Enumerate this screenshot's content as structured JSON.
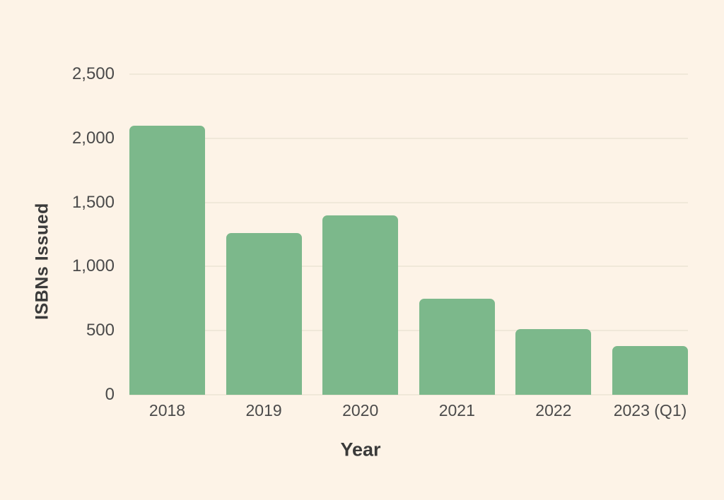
{
  "chart_data": {
    "type": "bar",
    "title": "",
    "xlabel": "Year",
    "ylabel": "ISBNs Issued",
    "categories": [
      "2018",
      "2019",
      "2020",
      "2021",
      "2022",
      "2023 (Q1)"
    ],
    "values": [
      2100,
      1260,
      1400,
      750,
      510,
      380
    ],
    "ylim": [
      0,
      2500
    ],
    "ytick_values": [
      0,
      500,
      1000,
      1500,
      2000,
      2500
    ],
    "ytick_labels": [
      "0",
      "500",
      "1,000",
      "1,500",
      "2,000",
      "2,500"
    ],
    "grid": true,
    "legend": false,
    "colors": {
      "background": "#fdf3e7",
      "bar": "#7cb88b",
      "tick_text": "#4a4a4a",
      "axis_title_text": "#3a3a3a",
      "gridline": "#f0e8d9"
    }
  }
}
